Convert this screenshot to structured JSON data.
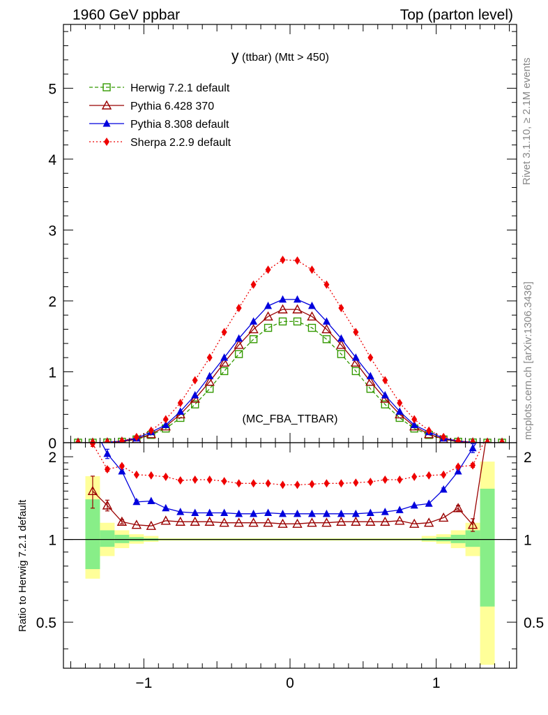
{
  "header": {
    "left": "1960 GeV ppbar",
    "right": "Top (parton level)"
  },
  "side_labels": {
    "rivet": "Rivet 3.1.10, ≥ 2.1M events",
    "mcplots": "mcplots.cern.ch [arXiv:1306.3436]"
  },
  "chart_data": [
    {
      "type": "line",
      "panel": "main",
      "title_main": "y",
      "title_rest": " (ttbar) (Mtt > 450)",
      "watermark": "(MC_FBA_TTBAR)",
      "xlabel": "",
      "ylabel": "",
      "xlim": [
        -1.55,
        1.55
      ],
      "ylim": [
        0,
        5.9
      ],
      "xticks": [
        -1,
        0,
        1
      ],
      "yticks": [
        0,
        1,
        2,
        3,
        4,
        5
      ],
      "ytick_labels": [
        "0",
        "1",
        "2",
        "3",
        "4",
        "5"
      ],
      "legend_position": "top-left",
      "x": [
        -1.45,
        -1.35,
        -1.25,
        -1.15,
        -1.05,
        -0.95,
        -0.85,
        -0.75,
        -0.65,
        -0.55,
        -0.45,
        -0.35,
        -0.25,
        -0.15,
        -0.05,
        0.05,
        0.15,
        0.25,
        0.35,
        0.45,
        0.55,
        0.65,
        0.75,
        0.85,
        0.95,
        1.05,
        1.15,
        1.25,
        1.35,
        1.45
      ],
      "series": [
        {
          "name": "Herwig 7.2.1 default",
          "color": "#339900",
          "marker": "square-open",
          "line": "dashed",
          "values": [
            0.0,
            0.0,
            0.003,
            0.013,
            0.045,
            0.11,
            0.2,
            0.35,
            0.54,
            0.76,
            1.01,
            1.25,
            1.46,
            1.62,
            1.71,
            1.71,
            1.62,
            1.46,
            1.25,
            1.01,
            0.76,
            0.54,
            0.35,
            0.2,
            0.11,
            0.045,
            0.013,
            0.003,
            0.0,
            0.0
          ]
        },
        {
          "name": "Pythia 6.428 370",
          "color": "#990000",
          "marker": "triangle-open",
          "line": "solid",
          "values": [
            0.0,
            0.0,
            0.004,
            0.015,
            0.05,
            0.12,
            0.23,
            0.4,
            0.62,
            0.86,
            1.13,
            1.38,
            1.6,
            1.78,
            1.88,
            1.88,
            1.78,
            1.6,
            1.38,
            1.13,
            0.86,
            0.62,
            0.4,
            0.23,
            0.12,
            0.05,
            0.015,
            0.004,
            0.0,
            0.0
          ]
        },
        {
          "name": "Pythia 8.308 default",
          "color": "#0000dd",
          "marker": "triangle-filled",
          "line": "solid",
          "values": [
            0.0,
            0.0,
            0.006,
            0.023,
            0.062,
            0.15,
            0.25,
            0.44,
            0.67,
            0.94,
            1.2,
            1.47,
            1.71,
            1.93,
            2.02,
            2.02,
            1.93,
            1.71,
            1.47,
            1.2,
            0.94,
            0.67,
            0.44,
            0.25,
            0.15,
            0.062,
            0.023,
            0.006,
            0.0,
            0.0
          ]
        },
        {
          "name": "Sherpa 2.2.9 default",
          "color": "#ee0000",
          "marker": "diamond-filled",
          "line": "dotted",
          "values": [
            0.0,
            0.001,
            0.006,
            0.024,
            0.08,
            0.17,
            0.33,
            0.56,
            0.88,
            1.2,
            1.56,
            1.9,
            2.23,
            2.44,
            2.58,
            2.57,
            2.44,
            2.23,
            1.9,
            1.56,
            1.2,
            0.88,
            0.56,
            0.33,
            0.17,
            0.08,
            0.024,
            0.006,
            0.001,
            0.0
          ]
        }
      ]
    },
    {
      "type": "line",
      "panel": "ratio",
      "ylabel": "Ratio to Herwig 7.2.1 default",
      "xlim": [
        -1.55,
        1.55
      ],
      "ylim": [
        0.34,
        2.25
      ],
      "yscale": "log",
      "xticks": [
        -1,
        0,
        1
      ],
      "xtick_labels": [
        "−1",
        "0",
        "1"
      ],
      "yticks": [
        0.5,
        1,
        2
      ],
      "ytick_labels": [
        "0.5",
        "1",
        "2"
      ],
      "x": [
        -1.35,
        -1.25,
        -1.15,
        -1.05,
        -0.95,
        -0.85,
        -0.75,
        -0.65,
        -0.55,
        -0.45,
        -0.35,
        -0.25,
        -0.15,
        -0.05,
        0.05,
        0.15,
        0.25,
        0.35,
        0.45,
        0.55,
        0.65,
        0.75,
        0.85,
        0.95,
        1.05,
        1.15,
        1.25,
        1.35
      ],
      "series": [
        {
          "name": "Pythia 6.428 370",
          "color": "#990000",
          "marker": "triangle-open",
          "line": "solid",
          "values": [
            1.5,
            1.33,
            1.16,
            1.13,
            1.12,
            1.17,
            1.16,
            1.16,
            1.16,
            1.15,
            1.15,
            1.15,
            1.15,
            1.14,
            1.14,
            1.15,
            1.15,
            1.16,
            1.16,
            1.16,
            1.16,
            1.17,
            1.14,
            1.15,
            1.2,
            1.3,
            1.13,
            2.5
          ],
          "errors": [
            0.2,
            0.06,
            0.02,
            0.01,
            0.01,
            0.01,
            0.01,
            0.01,
            0.01,
            0.01,
            0.01,
            0.01,
            0.01,
            0.01,
            0.01,
            0.01,
            0.01,
            0.01,
            0.01,
            0.01,
            0.01,
            0.01,
            0.01,
            0.01,
            0.01,
            0.03,
            0.06,
            0.2
          ]
        },
        {
          "name": "Pythia 8.308 default",
          "color": "#0000dd",
          "marker": "triangle-filled",
          "line": "solid",
          "values": [
            2.6,
            2.05,
            1.77,
            1.37,
            1.38,
            1.3,
            1.26,
            1.25,
            1.25,
            1.25,
            1.24,
            1.24,
            1.25,
            1.24,
            1.24,
            1.24,
            1.24,
            1.24,
            1.24,
            1.25,
            1.26,
            1.28,
            1.33,
            1.35,
            1.52,
            1.77,
            2.15,
            2.6
          ],
          "errors": [
            0.2,
            0.08,
            0.03,
            0.02,
            0.01,
            0.01,
            0.01,
            0.01,
            0.01,
            0.01,
            0.01,
            0.01,
            0.01,
            0.01,
            0.01,
            0.01,
            0.01,
            0.01,
            0.01,
            0.01,
            0.01,
            0.01,
            0.01,
            0.01,
            0.02,
            0.03,
            0.08,
            0.2
          ]
        },
        {
          "name": "Sherpa 2.2.9 default",
          "color": "#ee0000",
          "marker": "diamond-filled",
          "line": "dotted",
          "values": [
            2.23,
            1.8,
            1.85,
            1.72,
            1.71,
            1.69,
            1.64,
            1.65,
            1.65,
            1.63,
            1.6,
            1.6,
            1.6,
            1.58,
            1.58,
            1.59,
            1.6,
            1.6,
            1.61,
            1.62,
            1.65,
            1.65,
            1.69,
            1.71,
            1.72,
            1.84,
            1.86,
            2.4
          ],
          "errors": [
            0.05,
            0.03,
            0.02,
            0.01,
            0.01,
            0.01,
            0.01,
            0.01,
            0.01,
            0.01,
            0.01,
            0.01,
            0.01,
            0.01,
            0.01,
            0.01,
            0.01,
            0.01,
            0.01,
            0.01,
            0.01,
            0.01,
            0.01,
            0.01,
            0.01,
            0.02,
            0.03,
            0.05
          ]
        }
      ],
      "reference_band": {
        "name": "Herwig 7.2.1 default",
        "color": "#000000",
        "x_edges": [
          -1.4,
          -1.3,
          -1.2,
          -1.1,
          -1.0,
          -0.9,
          0.9,
          1.0,
          1.1,
          1.2,
          1.3,
          1.4
        ],
        "inner": [
          [
            0.78,
            1.4
          ],
          [
            0.94,
            1.08
          ],
          [
            0.97,
            1.04
          ],
          [
            0.985,
            1.02
          ],
          [
            0.99,
            1.01
          ],
          [
            0.995,
            1.005
          ],
          [
            0.99,
            1.01
          ],
          [
            0.985,
            1.02
          ],
          [
            0.97,
            1.04
          ],
          [
            0.94,
            1.08
          ],
          [
            0.57,
            1.53
          ]
        ],
        "outer": [
          [
            0.72,
            1.7
          ],
          [
            0.87,
            1.15
          ],
          [
            0.93,
            1.08
          ],
          [
            0.965,
            1.045
          ],
          [
            0.98,
            1.03
          ],
          [
            0.99,
            1.01
          ],
          [
            0.98,
            1.03
          ],
          [
            0.965,
            1.045
          ],
          [
            0.93,
            1.08
          ],
          [
            0.87,
            1.15
          ],
          [
            0.35,
            1.92
          ]
        ],
        "inner_color": "#88ee88",
        "outer_color": "#ffff99"
      }
    }
  ]
}
